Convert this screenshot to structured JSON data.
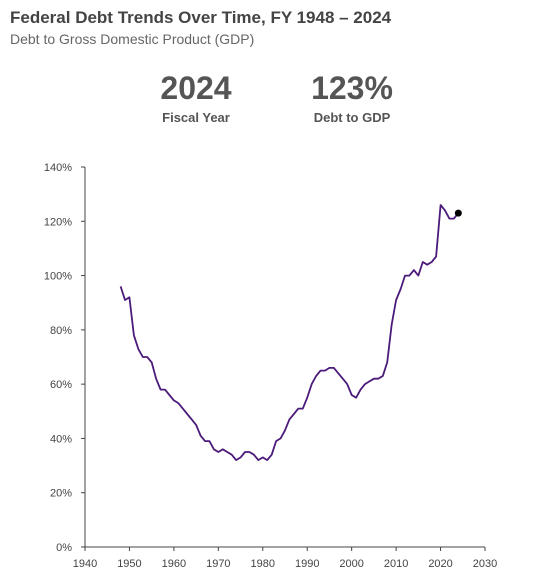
{
  "header": {
    "title": "Federal Debt Trends Over Time, FY 1948 – 2024",
    "subtitle": "Debt to Gross Domestic Product (GDP)"
  },
  "stats": [
    {
      "value": "2024",
      "label": "Fiscal Year"
    },
    {
      "value": "123%",
      "label": "Debt to GDP"
    }
  ],
  "chart_data": {
    "type": "line",
    "title": "",
    "xlabel": "",
    "ylabel": "",
    "xlim": [
      1940,
      2030
    ],
    "ylim": [
      0,
      140
    ],
    "x_ticks": [
      1940,
      1950,
      1960,
      1970,
      1980,
      1990,
      2000,
      2010,
      2020,
      2030
    ],
    "y_ticks": [
      0,
      20,
      40,
      60,
      80,
      100,
      120,
      140
    ],
    "y_tick_labels": [
      "0%",
      "20%",
      "40%",
      "60%",
      "80%",
      "100%",
      "120%",
      "140%"
    ],
    "grid": false,
    "line_color": "#4b1a7a",
    "x": [
      1948,
      1949,
      1950,
      1951,
      1952,
      1953,
      1954,
      1955,
      1956,
      1957,
      1958,
      1959,
      1960,
      1961,
      1962,
      1963,
      1964,
      1965,
      1966,
      1967,
      1968,
      1969,
      1970,
      1971,
      1972,
      1973,
      1974,
      1975,
      1976,
      1977,
      1978,
      1979,
      1980,
      1981,
      1982,
      1983,
      1984,
      1985,
      1986,
      1987,
      1988,
      1989,
      1990,
      1991,
      1992,
      1993,
      1994,
      1995,
      1996,
      1997,
      1998,
      1999,
      2000,
      2001,
      2002,
      2003,
      2004,
      2005,
      2006,
      2007,
      2008,
      2009,
      2010,
      2011,
      2012,
      2013,
      2014,
      2015,
      2016,
      2017,
      2018,
      2019,
      2020,
      2021,
      2022,
      2023,
      2024
    ],
    "y": [
      96,
      91,
      92,
      78,
      73,
      70,
      70,
      68,
      62,
      58,
      58,
      56,
      54,
      53,
      51,
      49,
      47,
      45,
      41,
      39,
      39,
      36,
      35,
      36,
      35,
      34,
      32,
      33,
      35,
      35,
      34,
      32,
      33,
      32,
      34,
      39,
      40,
      43,
      47,
      49,
      51,
      51,
      55,
      60,
      63,
      65,
      65,
      66,
      66,
      64,
      62,
      60,
      56,
      55,
      58,
      60,
      61,
      62,
      62,
      63,
      68,
      82,
      91,
      95,
      100,
      100,
      102,
      100,
      105,
      104,
      105,
      107,
      126,
      124,
      121,
      121,
      123
    ],
    "highlight_point": {
      "x": 2024,
      "y": 123
    }
  }
}
